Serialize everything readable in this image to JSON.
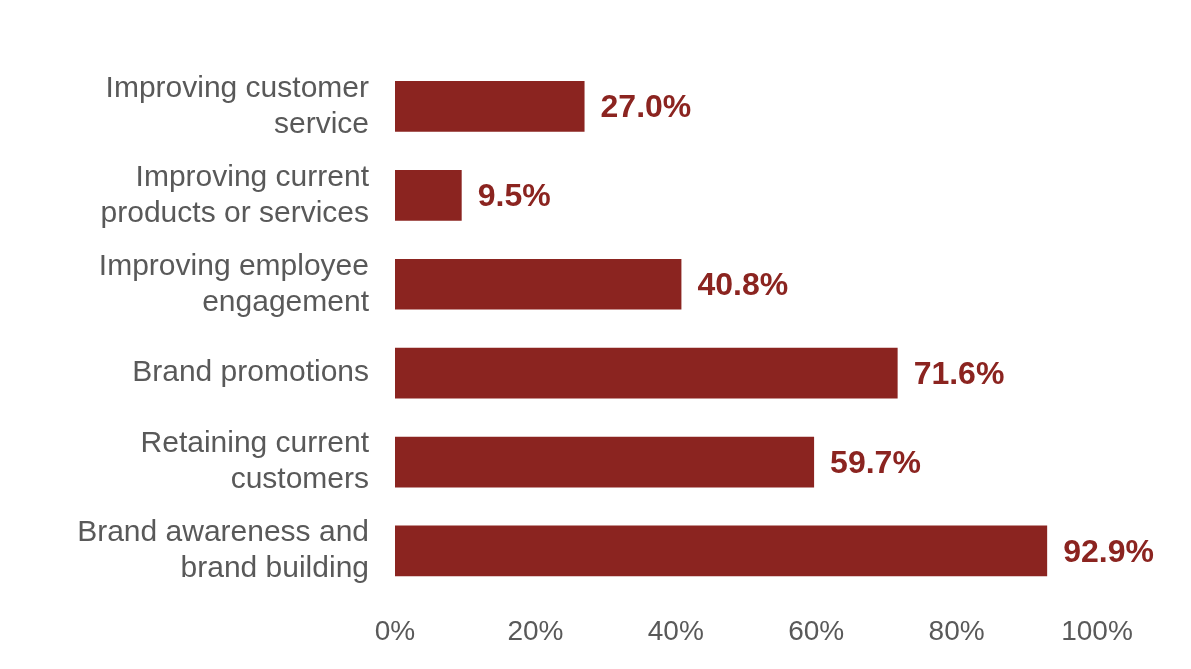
{
  "chart_data": {
    "type": "bar",
    "orientation": "horizontal",
    "categories": [
      "Improving customer service",
      "Improving current products or services",
      "Improving employee engagement",
      "Brand promotions",
      "Retaining current customers",
      "Brand awareness and brand building"
    ],
    "values": [
      27.0,
      9.5,
      40.8,
      71.6,
      59.7,
      92.9
    ],
    "color": "#8b2420",
    "value_labels": [
      "27.0%",
      "9.5%",
      "40.8%",
      "71.6%",
      "59.7%",
      "92.9%"
    ],
    "xlim": [
      0,
      100
    ],
    "xticks": [
      {
        "value": 0,
        "label": "0%"
      },
      {
        "value": 20,
        "label": "20%"
      },
      {
        "value": 40,
        "label": "40%"
      },
      {
        "value": 60,
        "label": "60%"
      },
      {
        "value": 80,
        "label": "80%"
      },
      {
        "value": 100,
        "label": "100%"
      }
    ]
  }
}
